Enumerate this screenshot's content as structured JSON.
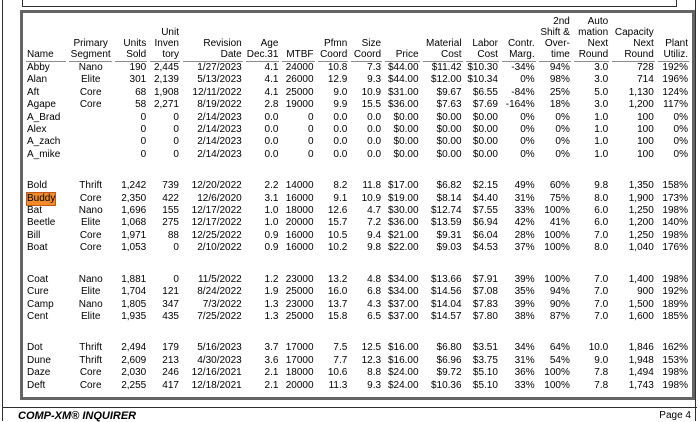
{
  "report": {
    "footer_left": "COMP-XM® INQUIRER",
    "footer_right": "Page 4"
  },
  "colors": {
    "highlight_bg": "#f28c28",
    "highlight_border": "#c2571a",
    "header_rule": "#8c8c8c",
    "panel_border": "#646464"
  },
  "table": {
    "columns": [
      {
        "key": "name",
        "label": "Name",
        "align": "left"
      },
      {
        "key": "primary-segment",
        "label": "Primary\nSegment",
        "align": "center"
      },
      {
        "key": "units-sold",
        "label": "Units\nSold",
        "align": "right"
      },
      {
        "key": "unit-inventory",
        "label": "Unit\nInven\ntory",
        "align": "right"
      },
      {
        "key": "revision-date",
        "label": "Revision Date",
        "align": "right"
      },
      {
        "key": "age-dec31",
        "label": "Age\nDec.31",
        "align": "right"
      },
      {
        "key": "mtbf",
        "label": "MTBF",
        "align": "right"
      },
      {
        "key": "pfmn-coord",
        "label": "Pfmn\nCoord",
        "align": "right"
      },
      {
        "key": "size-coord",
        "label": "Size\nCoord",
        "align": "right"
      },
      {
        "key": "price",
        "label": "Price",
        "align": "right"
      },
      {
        "key": "material-cost",
        "label": "Material\nCost",
        "align": "right"
      },
      {
        "key": "labor-cost",
        "label": "Labor\nCost",
        "align": "right"
      },
      {
        "key": "contr-marg",
        "label": "Contr.\nMarg.",
        "align": "right"
      },
      {
        "key": "second-shift-overtime",
        "label": "2nd\nShift &\nOver-\ntime",
        "align": "right"
      },
      {
        "key": "automation-next-round",
        "label": "Auto\nmation\nNext\nRound",
        "align": "right"
      },
      {
        "key": "capacity-next-round",
        "label": "Capacity\nNext\nRound",
        "align": "right"
      },
      {
        "key": "plant-utiliz",
        "label": "Plant\nUtiliz.",
        "align": "right"
      }
    ],
    "groups": [
      {
        "rows": [
          {
            "highlight": false,
            "cells": [
              "Abby",
              "Nano",
              "190",
              "2,445",
              "1/27/2023",
              "4.1",
              "24000",
              "10.8",
              "7.3",
              "$44.00",
              "$11.42",
              "$10.30",
              "-34%",
              "94%",
              "3.0",
              "728",
              "192%"
            ]
          },
          {
            "highlight": false,
            "cells": [
              "Alan",
              "Elite",
              "301",
              "2,139",
              "5/13/2023",
              "4.1",
              "26000",
              "12.9",
              "9.3",
              "$44.00",
              "$12.00",
              "$10.34",
              "0%",
              "98%",
              "3.0",
              "714",
              "196%"
            ]
          },
          {
            "highlight": false,
            "cells": [
              "Aft",
              "Core",
              "68",
              "1,908",
              "12/11/2022",
              "4.1",
              "25000",
              "9.0",
              "10.9",
              "$31.00",
              "$9.67",
              "$6.55",
              "-84%",
              "25%",
              "5.0",
              "1,130",
              "124%"
            ]
          },
          {
            "highlight": false,
            "cells": [
              "Agape",
              "Core",
              "58",
              "2,271",
              "8/19/2022",
              "2.8",
              "19000",
              "9.9",
              "15.5",
              "$36.00",
              "$7.63",
              "$7.69",
              "-164%",
              "18%",
              "3.0",
              "1,200",
              "117%"
            ]
          },
          {
            "highlight": false,
            "cells": [
              "A_Brad",
              "",
              "0",
              "0",
              "2/14/2023",
              "0.0",
              "0",
              "0.0",
              "0.0",
              "$0.00",
              "$0.00",
              "$0.00",
              "0%",
              "0%",
              "1.0",
              "100",
              "0%"
            ]
          },
          {
            "highlight": false,
            "cells": [
              "Alex",
              "",
              "0",
              "0",
              "2/14/2023",
              "0.0",
              "0",
              "0.0",
              "0.0",
              "$0.00",
              "$0.00",
              "$0.00",
              "0%",
              "0%",
              "1.0",
              "100",
              "0%"
            ]
          },
          {
            "highlight": false,
            "cells": [
              "A_zach",
              "",
              "0",
              "0",
              "2/14/2023",
              "0.0",
              "0",
              "0.0",
              "0.0",
              "$0.00",
              "$0.00",
              "$0.00",
              "0%",
              "0%",
              "1.0",
              "100",
              "0%"
            ]
          },
          {
            "highlight": false,
            "cells": [
              "A_mike",
              "",
              "0",
              "0",
              "2/14/2023",
              "0.0",
              "0",
              "0.0",
              "0.0",
              "$0.00",
              "$0.00",
              "$0.00",
              "0%",
              "0%",
              "1.0",
              "100",
              "0%"
            ]
          }
        ]
      },
      {
        "rows": [
          {
            "highlight": false,
            "cells": [
              "Bold",
              "Thrift",
              "1,242",
              "739",
              "12/20/2022",
              "2.2",
              "14000",
              "8.2",
              "11.8",
              "$17.00",
              "$6.82",
              "$2.15",
              "49%",
              "60%",
              "9.8",
              "1,350",
              "158%"
            ]
          },
          {
            "highlight": true,
            "cells": [
              "Buddy",
              "Core",
              "2,350",
              "422",
              "12/6/2020",
              "3.1",
              "16000",
              "9.1",
              "10.9",
              "$19.00",
              "$8.14",
              "$4.40",
              "31%",
              "75%",
              "8.0",
              "1,900",
              "173%"
            ]
          },
          {
            "highlight": false,
            "cells": [
              "Bat",
              "Nano",
              "1,696",
              "155",
              "12/17/2022",
              "1.0",
              "18000",
              "12.6",
              "4.7",
              "$30.00",
              "$12.74",
              "$7.55",
              "33%",
              "100%",
              "6.0",
              "1,250",
              "198%"
            ]
          },
          {
            "highlight": false,
            "cells": [
              "Beetle",
              "Elite",
              "1,068",
              "275",
              "12/17/2022",
              "1.0",
              "20000",
              "15.7",
              "7.2",
              "$36.00",
              "$13.59",
              "$6.94",
              "42%",
              "41%",
              "6.0",
              "1,200",
              "140%"
            ]
          },
          {
            "highlight": false,
            "cells": [
              "Bill",
              "Core",
              "1,971",
              "88",
              "12/25/2022",
              "0.9",
              "16000",
              "10.5",
              "9.4",
              "$21.00",
              "$9.31",
              "$6.04",
              "28%",
              "100%",
              "7.0",
              "1,250",
              "198%"
            ]
          },
          {
            "highlight": false,
            "cells": [
              "Boat",
              "Core",
              "1,053",
              "0",
              "2/10/2022",
              "0.9",
              "16000",
              "10.2",
              "9.8",
              "$22.00",
              "$9.03",
              "$4.53",
              "37%",
              "100%",
              "8.0",
              "1,040",
              "176%"
            ]
          }
        ]
      },
      {
        "rows": [
          {
            "highlight": false,
            "cells": [
              "Coat",
              "Nano",
              "1,881",
              "0",
              "11/5/2022",
              "1.2",
              "23000",
              "13.2",
              "4.8",
              "$34.00",
              "$13.66",
              "$7.91",
              "39%",
              "100%",
              "7.0",
              "1,400",
              "198%"
            ]
          },
          {
            "highlight": false,
            "cells": [
              "Cure",
              "Elite",
              "1,704",
              "121",
              "8/24/2022",
              "1.9",
              "25000",
              "16.0",
              "6.8",
              "$34.00",
              "$14.56",
              "$7.08",
              "35%",
              "94%",
              "7.0",
              "900",
              "192%"
            ]
          },
          {
            "highlight": false,
            "cells": [
              "Camp",
              "Nano",
              "1,805",
              "347",
              "7/3/2022",
              "1.3",
              "23000",
              "13.7",
              "4.3",
              "$37.00",
              "$14.04",
              "$7.83",
              "39%",
              "90%",
              "7.0",
              "1,500",
              "189%"
            ]
          },
          {
            "highlight": false,
            "cells": [
              "Cent",
              "Elite",
              "1,935",
              "435",
              "7/25/2022",
              "1.3",
              "25000",
              "15.8",
              "6.5",
              "$37.00",
              "$14.57",
              "$7.80",
              "38%",
              "87%",
              "7.0",
              "1,600",
              "185%"
            ]
          }
        ]
      },
      {
        "rows": [
          {
            "highlight": false,
            "cells": [
              "Dot",
              "Thrift",
              "2,494",
              "179",
              "5/16/2023",
              "3.7",
              "17000",
              "7.5",
              "12.5",
              "$16.00",
              "$6.80",
              "$3.51",
              "34%",
              "64%",
              "10.0",
              "1,846",
              "162%"
            ]
          },
          {
            "highlight": false,
            "cells": [
              "Dune",
              "Thrift",
              "2,609",
              "213",
              "4/30/2023",
              "3.6",
              "17000",
              "7.7",
              "12.3",
              "$16.00",
              "$6.96",
              "$3.75",
              "31%",
              "54%",
              "9.0",
              "1,948",
              "153%"
            ]
          },
          {
            "highlight": false,
            "cells": [
              "Daze",
              "Core",
              "2,030",
              "246",
              "12/16/2021",
              "2.1",
              "18000",
              "10.6",
              "8.8",
              "$24.00",
              "$9.72",
              "$5.10",
              "36%",
              "100%",
              "7.8",
              "1,494",
              "198%"
            ]
          },
          {
            "highlight": false,
            "cells": [
              "Deft",
              "Core",
              "2,255",
              "417",
              "12/18/2021",
              "2.1",
              "20000",
              "11.3",
              "9.3",
              "$24.00",
              "$10.36",
              "$5.10",
              "33%",
              "100%",
              "7.8",
              "1,743",
              "198%"
            ]
          }
        ]
      }
    ]
  }
}
